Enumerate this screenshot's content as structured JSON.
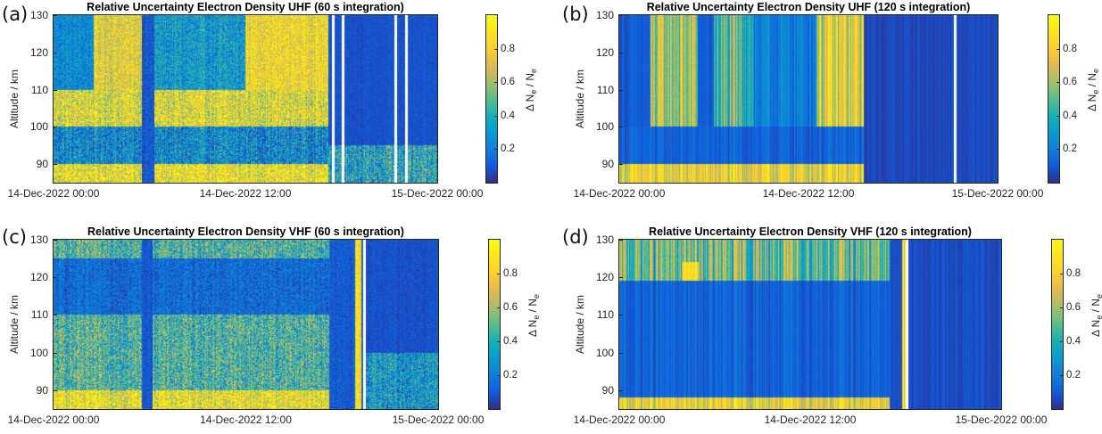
{
  "chart_data": [
    {
      "id": "a",
      "type": "heatmap",
      "panel_label": "(a)",
      "title": "Relative Uncertainty Electron Density UHF (60 s integration)",
      "xlabel": "",
      "ylabel": "Altitude / km",
      "x_ticks": [
        "14-Dec-2022 00:00",
        "14-Dec-2022 12:00",
        "15-Dec-2022 00:00"
      ],
      "x_range_hours": [
        0,
        24
      ],
      "y_ticks": [
        90,
        100,
        110,
        120,
        130
      ],
      "ylim": [
        85,
        130
      ],
      "colorbar": {
        "label": "ΔN_e / N_e",
        "ticks": [
          0.2,
          0.4,
          0.6,
          0.8
        ],
        "range": [
          0,
          1
        ],
        "colormap": "parula"
      },
      "data_gaps_hours": [
        17.4,
        18.0,
        21.3,
        22.0
      ],
      "regions": [
        {
          "t": [
            0,
            17.2
          ],
          "alt": [
            85,
            90
          ],
          "value": 0.8,
          "noise": 0.35
        },
        {
          "t": [
            0,
            17.2
          ],
          "alt": [
            90,
            100
          ],
          "value": 0.25,
          "noise": 0.3
        },
        {
          "t": [
            0,
            17.2
          ],
          "alt": [
            100,
            110
          ],
          "value": 0.75,
          "noise": 0.35
        },
        {
          "t": [
            0,
            2.5
          ],
          "alt": [
            110,
            130
          ],
          "value": 0.25,
          "noise": 0.2
        },
        {
          "t": [
            2.5,
            5.5
          ],
          "alt": [
            110,
            130
          ],
          "value": 0.75,
          "noise": 0.25
        },
        {
          "t": [
            5.5,
            6.3
          ],
          "alt": [
            85,
            130
          ],
          "value": 0.1,
          "noise": 0.1
        },
        {
          "t": [
            6.3,
            12.0
          ],
          "alt": [
            110,
            130
          ],
          "value": 0.3,
          "noise": 0.25
        },
        {
          "t": [
            12.0,
            17.2
          ],
          "alt": [
            110,
            130
          ],
          "value": 0.8,
          "noise": 0.25
        },
        {
          "t": [
            17.2,
            24
          ],
          "alt": [
            95,
            130
          ],
          "value": 0.08,
          "noise": 0.05
        },
        {
          "t": [
            17.2,
            24
          ],
          "alt": [
            85,
            95
          ],
          "value": 0.35,
          "noise": 0.35
        }
      ]
    },
    {
      "id": "b",
      "type": "heatmap",
      "panel_label": "(b)",
      "title": "Relative Uncertainty Electron Density UHF (120 s integration)",
      "xlabel": "",
      "ylabel": "Altitude / km",
      "x_ticks": [
        "14-Dec-2022 00:00",
        "14-Dec-2022 12:00",
        "15-Dec-2022 00:00"
      ],
      "x_range_hours": [
        0,
        24
      ],
      "y_ticks": [
        90,
        100,
        110,
        120,
        130
      ],
      "ylim": [
        85,
        130
      ],
      "colorbar": {
        "label": "ΔN_e / N_e",
        "ticks": [
          0.2,
          0.4,
          0.6,
          0.8
        ],
        "range": [
          0,
          1
        ],
        "colormap": "parula"
      },
      "data_gaps_hours": [
        21.2
      ],
      "regions": [
        {
          "t": [
            0,
            17.0
          ],
          "alt": [
            85,
            90
          ],
          "value": 0.75,
          "noise": 0.3
        },
        {
          "t": [
            0,
            17.0
          ],
          "alt": [
            90,
            100
          ],
          "value": 0.12,
          "noise": 0.1
        },
        {
          "t": [
            0,
            2.0
          ],
          "alt": [
            100,
            130
          ],
          "value": 0.1,
          "noise": 0.08
        },
        {
          "t": [
            2.0,
            5.0
          ],
          "alt": [
            100,
            130
          ],
          "value": 0.6,
          "noise": 0.35
        },
        {
          "t": [
            5.0,
            6.0
          ],
          "alt": [
            100,
            130
          ],
          "value": 0.1,
          "noise": 0.08
        },
        {
          "t": [
            6.0,
            8.5
          ],
          "alt": [
            100,
            130
          ],
          "value": 0.45,
          "noise": 0.35
        },
        {
          "t": [
            8.5,
            12.5
          ],
          "alt": [
            100,
            130
          ],
          "value": 0.2,
          "noise": 0.15
        },
        {
          "t": [
            12.5,
            15.5
          ],
          "alt": [
            100,
            130
          ],
          "value": 0.7,
          "noise": 0.35
        },
        {
          "t": [
            15.5,
            24
          ],
          "alt": [
            85,
            130
          ],
          "value": 0.06,
          "noise": 0.05
        }
      ]
    },
    {
      "id": "c",
      "type": "heatmap",
      "panel_label": "(c)",
      "title": "Relative Uncertainty Electron Density VHF (60 s integration)",
      "xlabel": "",
      "ylabel": "Altitude / km",
      "x_ticks": [
        "14-Dec-2022 00:00",
        "14-Dec-2022 12:00",
        "15-Dec-2022 00:00"
      ],
      "x_range_hours": [
        0,
        24
      ],
      "y_ticks": [
        90,
        100,
        110,
        120,
        130
      ],
      "ylim": [
        85,
        130
      ],
      "colorbar": {
        "label": "ΔN_e / N_e",
        "ticks": [
          0.2,
          0.4,
          0.6,
          0.8
        ],
        "range": [
          0,
          1
        ],
        "colormap": "parula"
      },
      "data_gaps_hours": [
        19.3
      ],
      "regions": [
        {
          "t": [
            0,
            17.2
          ],
          "alt": [
            85,
            90
          ],
          "value": 0.8,
          "noise": 0.35
        },
        {
          "t": [
            0,
            17.2
          ],
          "alt": [
            90,
            110
          ],
          "value": 0.45,
          "noise": 0.35
        },
        {
          "t": [
            0,
            17.2
          ],
          "alt": [
            110,
            125
          ],
          "value": 0.15,
          "noise": 0.15
        },
        {
          "t": [
            0,
            17.2
          ],
          "alt": [
            125,
            130
          ],
          "value": 0.45,
          "noise": 0.35
        },
        {
          "t": [
            5.5,
            6.2
          ],
          "alt": [
            85,
            130
          ],
          "value": 0.1,
          "noise": 0.08
        },
        {
          "t": [
            17.2,
            18.8
          ],
          "alt": [
            85,
            130
          ],
          "value": 0.1,
          "noise": 0.08
        },
        {
          "t": [
            18.8,
            19.2
          ],
          "alt": [
            85,
            130
          ],
          "value": 0.85,
          "noise": 0.2
        },
        {
          "t": [
            19.5,
            24
          ],
          "alt": [
            100,
            130
          ],
          "value": 0.08,
          "noise": 0.06
        },
        {
          "t": [
            19.5,
            24
          ],
          "alt": [
            85,
            100
          ],
          "value": 0.3,
          "noise": 0.3
        }
      ]
    },
    {
      "id": "d",
      "type": "heatmap",
      "panel_label": "(d)",
      "title": "Relative Uncertainty Electron Density VHF (120 s integration)",
      "xlabel": "",
      "ylabel": "Altitude / km",
      "x_ticks": [
        "14-Dec-2022 00:00",
        "14-Dec-2022 12:00",
        "15-Dec-2022 00:00"
      ],
      "x_range_hours": [
        0,
        24
      ],
      "y_ticks": [
        90,
        100,
        110,
        120,
        130
      ],
      "ylim": [
        85,
        130
      ],
      "colorbar": {
        "label": "ΔN_e / N_e",
        "ticks": [
          0.2,
          0.4,
          0.6,
          0.8
        ],
        "range": [
          0,
          1
        ],
        "colormap": "parula"
      },
      "data_gaps_hours": [
        18.0
      ],
      "regions": [
        {
          "t": [
            0,
            17.0
          ],
          "alt": [
            85,
            88
          ],
          "value": 0.75,
          "noise": 0.3
        },
        {
          "t": [
            0,
            17.0
          ],
          "alt": [
            88,
            119
          ],
          "value": 0.12,
          "noise": 0.1
        },
        {
          "t": [
            0,
            17.0
          ],
          "alt": [
            119,
            130
          ],
          "value": 0.5,
          "noise": 0.4
        },
        {
          "t": [
            4.0,
            5.0
          ],
          "alt": [
            119,
            124
          ],
          "value": 0.85,
          "noise": 0.1
        },
        {
          "t": [
            17.0,
            17.8
          ],
          "alt": [
            85,
            130
          ],
          "value": 0.08,
          "noise": 0.05
        },
        {
          "t": [
            17.8,
            18.0
          ],
          "alt": [
            85,
            130
          ],
          "value": 0.8,
          "noise": 0.2
        },
        {
          "t": [
            18.2,
            24
          ],
          "alt": [
            85,
            130
          ],
          "value": 0.07,
          "noise": 0.05
        }
      ]
    }
  ]
}
